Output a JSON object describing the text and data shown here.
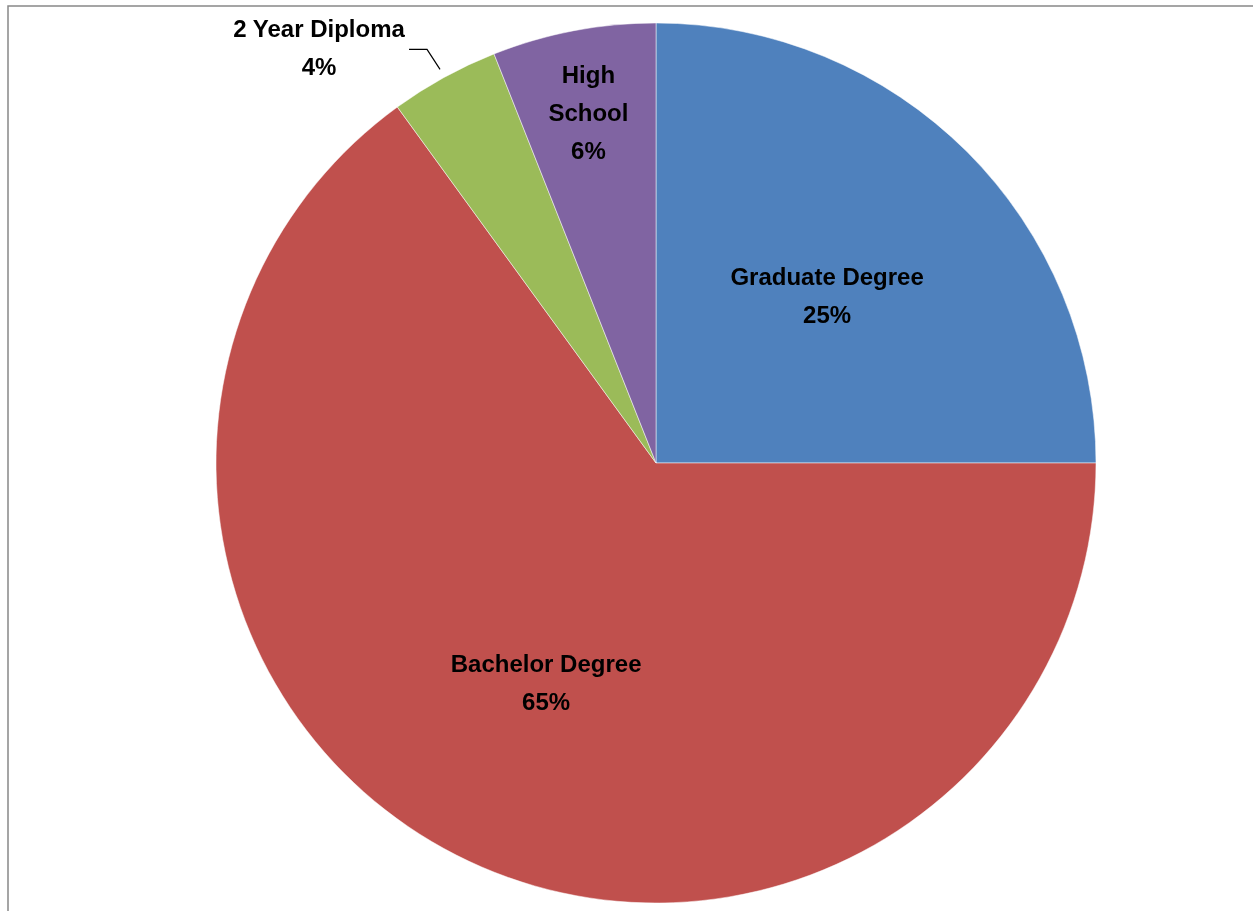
{
  "chart_data": {
    "type": "pie",
    "categories": [
      "Graduate Degree",
      "Bachelor Degree",
      "2 Year Diploma",
      "High School"
    ],
    "values": [
      25,
      65,
      4,
      6
    ],
    "colors": [
      "#4f81bd",
      "#c0504d",
      "#9bbb59",
      "#8064a2"
    ],
    "value_labels": [
      "25%",
      "65%",
      "4%",
      "6%"
    ]
  }
}
